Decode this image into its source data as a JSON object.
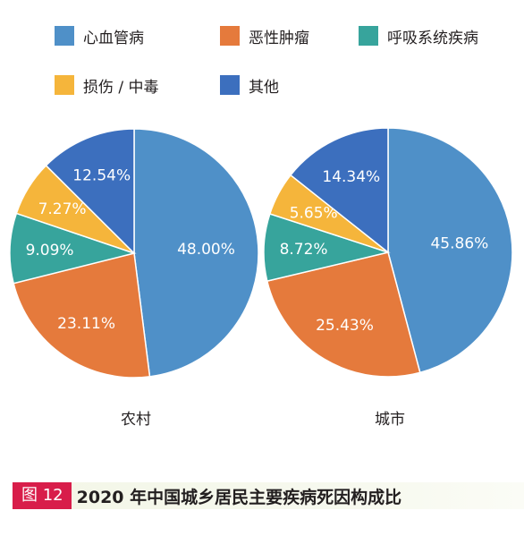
{
  "legend": [
    {
      "label": "心血管病",
      "color": "#4f90c8"
    },
    {
      "label": "恶性肿瘤",
      "color": "#e57a3c"
    },
    {
      "label": "呼吸系统疾病",
      "color": "#37a49c"
    },
    {
      "label": "损伤 / 中毒",
      "color": "#f5b53b"
    },
    {
      "label": "其他",
      "color": "#3c6fbe"
    }
  ],
  "chart_data": [
    {
      "type": "pie",
      "title": "农村",
      "slices": [
        {
          "label": "心血管病",
          "value": 48.0,
          "display": "48.00%"
        },
        {
          "label": "恶性肿瘤",
          "value": 23.11,
          "display": "23.11%"
        },
        {
          "label": "呼吸系统疾病",
          "value": 9.09,
          "display": "9.09%"
        },
        {
          "label": "损伤 / 中毒",
          "value": 7.27,
          "display": "7.27%"
        },
        {
          "label": "其他",
          "value": 12.54,
          "display": "12.54%"
        }
      ]
    },
    {
      "type": "pie",
      "title": "城市",
      "slices": [
        {
          "label": "心血管病",
          "value": 45.86,
          "display": "45.86%"
        },
        {
          "label": "恶性肿瘤",
          "value": 25.43,
          "display": "25.43%"
        },
        {
          "label": "呼吸系统疾病",
          "value": 8.72,
          "display": "8.72%"
        },
        {
          "label": "损伤 / 中毒",
          "value": 5.65,
          "display": "5.65%"
        },
        {
          "label": "其他",
          "value": 14.34,
          "display": "14.34%"
        }
      ]
    }
  ],
  "caption": {
    "tag": "图 12",
    "title": "2020 年中国城乡居民主要疾病死因构成比"
  }
}
